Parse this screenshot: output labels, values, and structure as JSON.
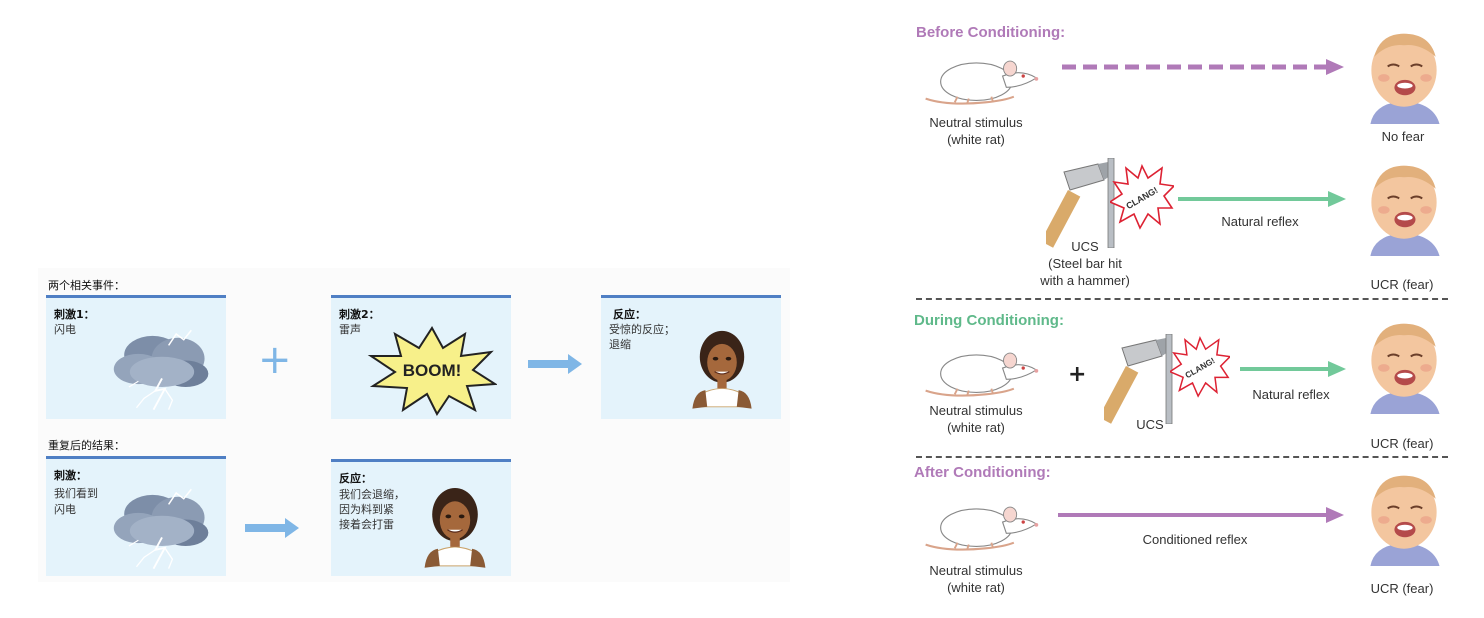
{
  "left": {
    "top_heading": "两个相关事件：",
    "bottom_heading": "重复后的结果：",
    "stim1": {
      "label": "刺激1：",
      "text": "闪电"
    },
    "stim2": {
      "label": "刺激2：",
      "text": "雷声",
      "boom": "BOOM!"
    },
    "response1": {
      "label": "反应：",
      "lines": [
        "受惊的反应；",
        "退缩"
      ]
    },
    "stim_after": {
      "label": "刺激：",
      "lines": [
        "我们看到",
        "闪电"
      ]
    },
    "response2": {
      "label": "反应：",
      "lines": [
        "我们会退缩，",
        "因为料到紧",
        "接着会打雷"
      ]
    },
    "plus": "+"
  },
  "right": {
    "before": {
      "title": "Before Conditioning:",
      "rat_caption": [
        "Neutral stimulus",
        "(white rat)"
      ],
      "baby_caption": "No fear",
      "ucs_caption": [
        "UCS",
        "(Steel bar hit",
        "with a hammer)"
      ],
      "arrow_label": "Natural reflex",
      "ucr_caption": "UCR (fear)",
      "clang": "CLANG!"
    },
    "during": {
      "title": "During Conditioning:",
      "rat_caption": [
        "Neutral stimulus",
        "(white rat)"
      ],
      "plus": "+",
      "ucs_caption": "UCS",
      "arrow_label": "Natural reflex",
      "ucr_caption": "UCR (fear)",
      "clang": "CLANG!"
    },
    "after": {
      "title": "After Conditioning:",
      "rat_caption": [
        "Neutral stimulus",
        "(white rat)"
      ],
      "arrow_label": "Conditioned reflex",
      "ucr_caption": "UCR (fear)"
    }
  },
  "colors": {
    "purple": "#b07ab8",
    "green": "#72c99a",
    "blue_arrow": "#7fb6e6",
    "card_bg": "#e4f3fb",
    "card_border": "#4f7fc4"
  },
  "icons": [
    "storm-cloud-icon",
    "boom-burst-icon",
    "woman-face-icon",
    "white-rat-icon",
    "baby-face-icon",
    "hammer-icon",
    "clang-burst-icon"
  ]
}
